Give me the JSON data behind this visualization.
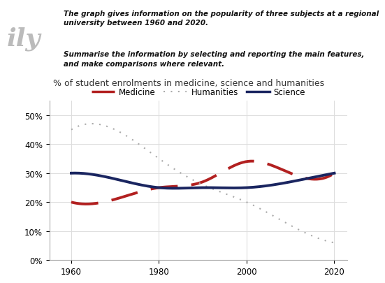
{
  "years": [
    1960,
    1970,
    1980,
    1990,
    2000,
    2010,
    2020
  ],
  "medicine": [
    20,
    21,
    25,
    27,
    34,
    30,
    30
  ],
  "humanities": [
    45,
    45,
    35,
    26,
    20,
    12,
    6
  ],
  "science": [
    30,
    28,
    25,
    25,
    25,
    27,
    30
  ],
  "title": "% of student enrolments in medicine, science and humanities",
  "ylim": [
    0,
    55
  ],
  "yticks": [
    0,
    10,
    20,
    30,
    40,
    50
  ],
  "ytick_labels": [
    "0%",
    "10%",
    "20%",
    "30%",
    "40%",
    "50%"
  ],
  "xticks": [
    1960,
    1980,
    2000,
    2020
  ],
  "medicine_color": "#b22020",
  "humanities_color": "#aaaaaa",
  "science_color": "#1a2560",
  "bg_color": "#ffffff",
  "text_box_color": "#cce0f0",
  "text_box_text1": "The graph gives information on the popularity of three subjects at a regional\nuniversity between 1960 and 2020.",
  "text_box_text2": "Summarise the information by selecting and reporting the main features,\nand make comparisons where relevant.",
  "left_text": "ily",
  "title_fontsize": 9,
  "legend_fontsize": 8.5,
  "tick_fontsize": 8.5
}
